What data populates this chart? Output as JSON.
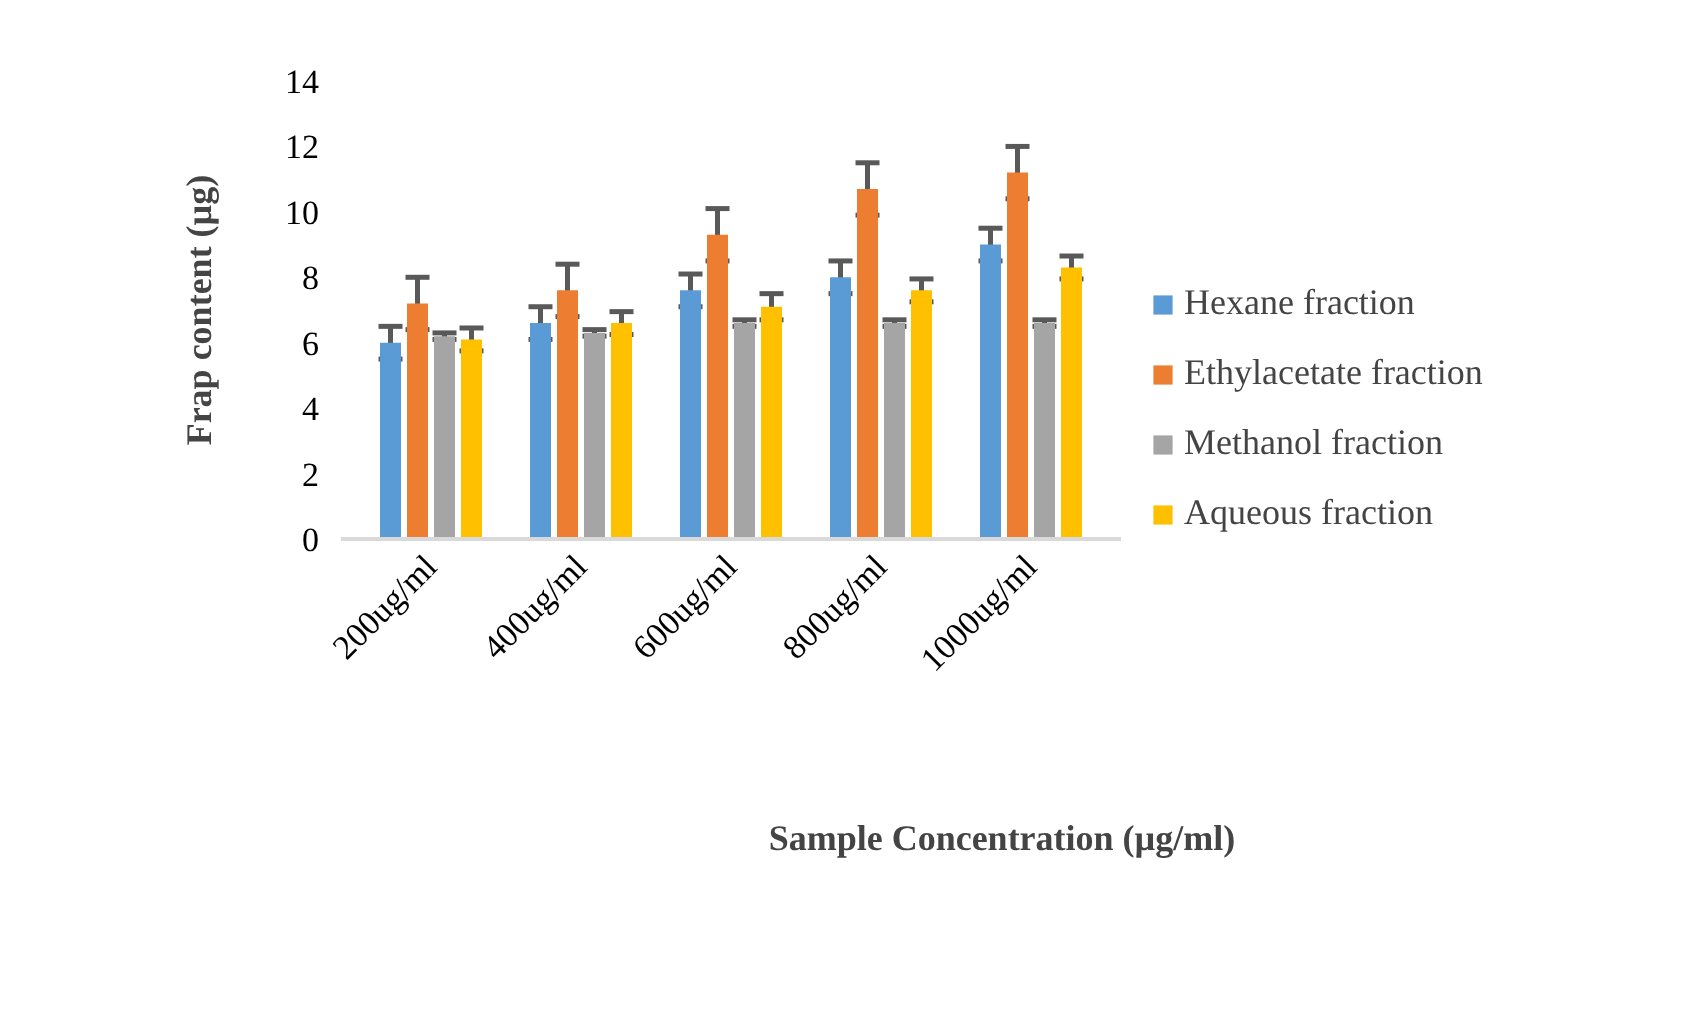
{
  "chart_data": {
    "type": "bar",
    "xlabel": "Sample Concentration   (µg/ml)",
    "ylabel": "Frap content (µg)",
    "categories": [
      "200ug/ml",
      "400ug/ml",
      "600ug/ml",
      "800ug/ml",
      "1000ug/ml"
    ],
    "series": [
      {
        "name": "Hexane fraction",
        "color": "#5b9bd5",
        "values": [
          6.0,
          6.6,
          7.6,
          8.0,
          9.0
        ],
        "errors": [
          0.5,
          0.5,
          0.5,
          0.5,
          0.5
        ]
      },
      {
        "name": "Ethylacetate fraction",
        "color": "#ed7d31",
        "values": [
          7.2,
          7.6,
          9.3,
          10.7,
          11.2
        ],
        "errors": [
          0.8,
          0.8,
          0.8,
          0.8,
          0.8
        ]
      },
      {
        "name": "Methanol fraction",
        "color": "#a5a5a5",
        "values": [
          6.2,
          6.3,
          6.6,
          6.6,
          6.6
        ],
        "errors": [
          0.1,
          0.1,
          0.1,
          0.1,
          0.1
        ]
      },
      {
        "name": "Aqueous fraction",
        "color": "#ffc000",
        "values": [
          6.1,
          6.6,
          7.1,
          7.6,
          8.3
        ],
        "errors": [
          0.35,
          0.35,
          0.4,
          0.35,
          0.35
        ]
      }
    ],
    "ylim": [
      0,
      14
    ],
    "yticks": [
      0,
      2,
      4,
      6,
      8,
      10,
      12,
      14
    ],
    "grid": false,
    "legend": "right"
  }
}
